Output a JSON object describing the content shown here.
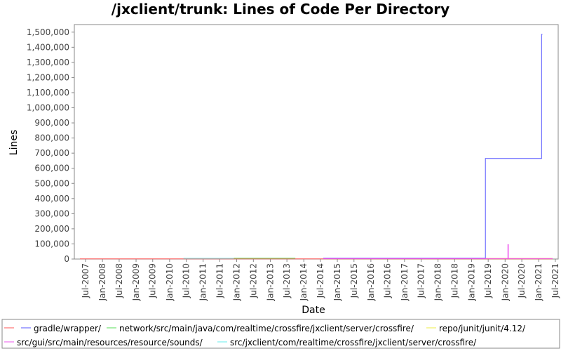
{
  "chart_data": {
    "type": "line",
    "title": "/jxclient/trunk: Lines of Code Per Directory",
    "xlabel": "Date",
    "ylabel": "Lines",
    "ylim": [
      0,
      1550000
    ],
    "xlim": [
      "2007-03-01",
      "2021-08-01"
    ],
    "y_ticks": [
      0,
      100000,
      200000,
      300000,
      400000,
      500000,
      600000,
      700000,
      800000,
      900000,
      1000000,
      1100000,
      1200000,
      1300000,
      1400000,
      1500000
    ],
    "y_tick_labels": [
      "0",
      "100,000",
      "200,000",
      "300,000",
      "400,000",
      "500,000",
      "600,000",
      "700,000",
      "800,000",
      "900,000",
      "1,000,000",
      "1,100,000",
      "1,200,000",
      "1,300,000",
      "1,400,000",
      "1,500,000"
    ],
    "x_ticks": [
      "2007-07-01",
      "2008-01-01",
      "2008-07-01",
      "2009-01-01",
      "2009-07-01",
      "2010-01-01",
      "2010-07-01",
      "2011-01-01",
      "2011-07-01",
      "2012-01-01",
      "2012-07-01",
      "2013-01-01",
      "2013-07-01",
      "2014-01-01",
      "2014-07-01",
      "2015-01-01",
      "2015-07-01",
      "2016-01-01",
      "2016-07-01",
      "2017-01-01",
      "2017-07-01",
      "2018-01-01",
      "2018-07-01",
      "2019-01-01",
      "2019-07-01",
      "2020-01-01",
      "2020-07-01",
      "2021-01-01",
      "2021-07-01"
    ],
    "x_tick_labels": [
      "Jul-2007",
      "Jan-2008",
      "Jul-2008",
      "Jan-2009",
      "Jul-2009",
      "Jan-2010",
      "Jul-2010",
      "Jan-2011",
      "Jul-2011",
      "Jan-2012",
      "Jul-2012",
      "Jan-2013",
      "Jul-2013",
      "Jan-2014",
      "Jul-2014",
      "Jan-2015",
      "Jul-2015",
      "Jan-2016",
      "Jul-2016",
      "Jan-2017",
      "Jul-2017",
      "Jan-2018",
      "Jul-2018",
      "Jan-2019",
      "Jul-2019",
      "Jan-2020",
      "Jul-2020",
      "Jan-2021",
      "Jul-2021"
    ],
    "grid": false,
    "legend_position": "bottom",
    "series": [
      {
        "name": "",
        "color": "#ff5555",
        "step": true,
        "points": [
          [
            "2007-05-01",
            800
          ],
          [
            "2021-06-01",
            800
          ]
        ]
      },
      {
        "name": "gradle/wrapper/",
        "color": "#5555ff",
        "step": true,
        "points": [
          [
            "2014-08-01",
            5000
          ],
          [
            "2019-06-01",
            5000
          ],
          [
            "2019-06-01",
            665000
          ],
          [
            "2021-02-01",
            665000
          ],
          [
            "2021-02-01",
            1485000
          ],
          [
            "2021-02-10",
            1485000
          ]
        ]
      },
      {
        "name": "network/src/main/java/com/realtime/crossfire/jxclient/server/crossfire/",
        "color": "#55dd55",
        "step": true,
        "points": [
          [
            "2011-12-01",
            5000
          ],
          [
            "2013-10-01",
            5000
          ]
        ]
      },
      {
        "name": "repo/junit/junit/4.12/",
        "color": "#eeee44",
        "step": true,
        "points": [
          [
            "2019-06-01",
            4000
          ],
          [
            "2021-06-01",
            4000
          ]
        ]
      },
      {
        "name": "src/gui/src/main/resources/resource/sounds/",
        "color": "#ee55ee",
        "step": true,
        "points": [
          [
            "2014-08-01",
            3000
          ],
          [
            "2020-02-01",
            3000
          ],
          [
            "2020-02-01",
            95000
          ],
          [
            "2020-02-05",
            95000
          ],
          [
            "2020-02-05",
            3000
          ],
          [
            "2021-06-01",
            3000
          ]
        ]
      },
      {
        "name": "src/jxclient/com/realtime/crossfire/jxclient/server/crossfire/",
        "color": "#66eeee",
        "step": true,
        "points": [
          [
            "2010-06-01",
            4500
          ],
          [
            "2011-12-01",
            4500
          ]
        ]
      }
    ]
  }
}
